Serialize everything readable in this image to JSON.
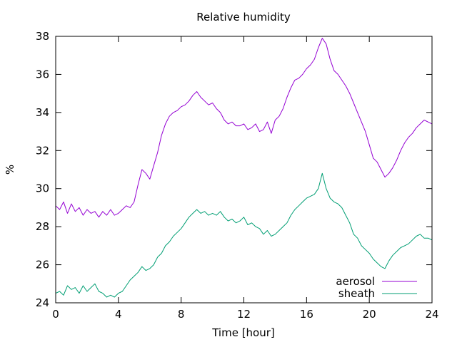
{
  "chart_data": {
    "type": "line",
    "title": "Relative humidity",
    "xlabel": "Time [hour]",
    "ylabel": "%",
    "xlim": [
      0,
      24
    ],
    "ylim": [
      24,
      38
    ],
    "x_ticks": [
      0,
      4,
      8,
      12,
      16,
      20,
      24
    ],
    "y_ticks": [
      24,
      26,
      28,
      30,
      32,
      34,
      36,
      38
    ],
    "grid": false,
    "legend_position": "bottom-right",
    "series": [
      {
        "name": "aerosol",
        "color": "#9400d3",
        "x": [
          0,
          0.25,
          0.5,
          0.75,
          1,
          1.25,
          1.5,
          1.75,
          2,
          2.25,
          2.5,
          2.75,
          3,
          3.25,
          3.5,
          3.75,
          4,
          4.25,
          4.5,
          4.75,
          5,
          5.25,
          5.5,
          5.75,
          6,
          6.25,
          6.5,
          6.75,
          7,
          7.25,
          7.5,
          7.75,
          8,
          8.25,
          8.5,
          8.75,
          9,
          9.25,
          9.5,
          9.75,
          10,
          10.25,
          10.5,
          10.75,
          11,
          11.25,
          11.5,
          11.75,
          12,
          12.25,
          12.5,
          12.75,
          13,
          13.25,
          13.5,
          13.75,
          14,
          14.25,
          14.5,
          14.75,
          15,
          15.25,
          15.5,
          15.75,
          16,
          16.25,
          16.5,
          16.75,
          17,
          17.25,
          17.5,
          17.75,
          18,
          18.25,
          18.5,
          18.75,
          19,
          19.25,
          19.5,
          19.75,
          20,
          20.25,
          20.5,
          20.75,
          21,
          21.25,
          21.5,
          21.75,
          22,
          22.25,
          22.5,
          22.75,
          23,
          23.25,
          23.5,
          23.75,
          24
        ],
        "y": [
          29.1,
          28.9,
          29.3,
          28.7,
          29.2,
          28.8,
          29.0,
          28.6,
          28.9,
          28.7,
          28.8,
          28.5,
          28.8,
          28.6,
          28.9,
          28.6,
          28.7,
          28.9,
          29.1,
          29.0,
          29.3,
          30.2,
          31.0,
          30.8,
          30.5,
          31.2,
          31.9,
          32.8,
          33.4,
          33.8,
          34.0,
          34.1,
          34.3,
          34.4,
          34.6,
          34.9,
          35.1,
          34.8,
          34.6,
          34.4,
          34.5,
          34.2,
          34.0,
          33.6,
          33.4,
          33.5,
          33.3,
          33.3,
          33.4,
          33.1,
          33.2,
          33.4,
          33.0,
          33.1,
          33.5,
          32.9,
          33.6,
          33.8,
          34.2,
          34.8,
          35.3,
          35.7,
          35.8,
          36.0,
          36.3,
          36.5,
          36.8,
          37.4,
          37.9,
          37.6,
          36.8,
          36.2,
          36.0,
          35.7,
          35.4,
          35.0,
          34.5,
          34.0,
          33.5,
          33.0,
          32.3,
          31.6,
          31.4,
          31.0,
          30.6,
          30.8,
          31.1,
          31.5,
          32.0,
          32.4,
          32.7,
          32.9,
          33.2,
          33.4,
          33.6,
          33.5,
          33.4
        ]
      },
      {
        "name": "sheath",
        "color": "#009e73",
        "x": [
          0,
          0.25,
          0.5,
          0.75,
          1,
          1.25,
          1.5,
          1.75,
          2,
          2.25,
          2.5,
          2.75,
          3,
          3.25,
          3.5,
          3.75,
          4,
          4.25,
          4.5,
          4.75,
          5,
          5.25,
          5.5,
          5.75,
          6,
          6.25,
          6.5,
          6.75,
          7,
          7.25,
          7.5,
          7.75,
          8,
          8.25,
          8.5,
          8.75,
          9,
          9.25,
          9.5,
          9.75,
          10,
          10.25,
          10.5,
          10.75,
          11,
          11.25,
          11.5,
          11.75,
          12,
          12.25,
          12.5,
          12.75,
          13,
          13.25,
          13.5,
          13.75,
          14,
          14.25,
          14.5,
          14.75,
          15,
          15.25,
          15.5,
          15.75,
          16,
          16.25,
          16.5,
          16.75,
          17,
          17.25,
          17.5,
          17.75,
          18,
          18.25,
          18.5,
          18.75,
          19,
          19.25,
          19.5,
          19.75,
          20,
          20.25,
          20.5,
          20.75,
          21,
          21.25,
          21.5,
          21.75,
          22,
          22.25,
          22.5,
          22.75,
          23,
          23.25,
          23.5,
          23.75,
          24
        ],
        "y": [
          24.5,
          24.6,
          24.4,
          24.9,
          24.7,
          24.8,
          24.5,
          24.9,
          24.6,
          24.8,
          25.0,
          24.6,
          24.5,
          24.3,
          24.4,
          24.3,
          24.5,
          24.6,
          24.9,
          25.2,
          25.4,
          25.6,
          25.9,
          25.7,
          25.8,
          26.0,
          26.4,
          26.6,
          27.0,
          27.2,
          27.5,
          27.7,
          27.9,
          28.2,
          28.5,
          28.7,
          28.9,
          28.7,
          28.8,
          28.6,
          28.7,
          28.6,
          28.8,
          28.5,
          28.3,
          28.4,
          28.2,
          28.3,
          28.5,
          28.1,
          28.2,
          28.0,
          27.9,
          27.6,
          27.8,
          27.5,
          27.6,
          27.8,
          28.0,
          28.2,
          28.6,
          28.9,
          29.1,
          29.3,
          29.5,
          29.6,
          29.7,
          30.0,
          30.8,
          30.0,
          29.5,
          29.3,
          29.2,
          29.0,
          28.6,
          28.2,
          27.6,
          27.4,
          27.0,
          26.8,
          26.6,
          26.3,
          26.1,
          25.9,
          25.8,
          26.2,
          26.5,
          26.7,
          26.9,
          27.0,
          27.1,
          27.3,
          27.5,
          27.6,
          27.4,
          27.4,
          27.3
        ]
      }
    ]
  }
}
